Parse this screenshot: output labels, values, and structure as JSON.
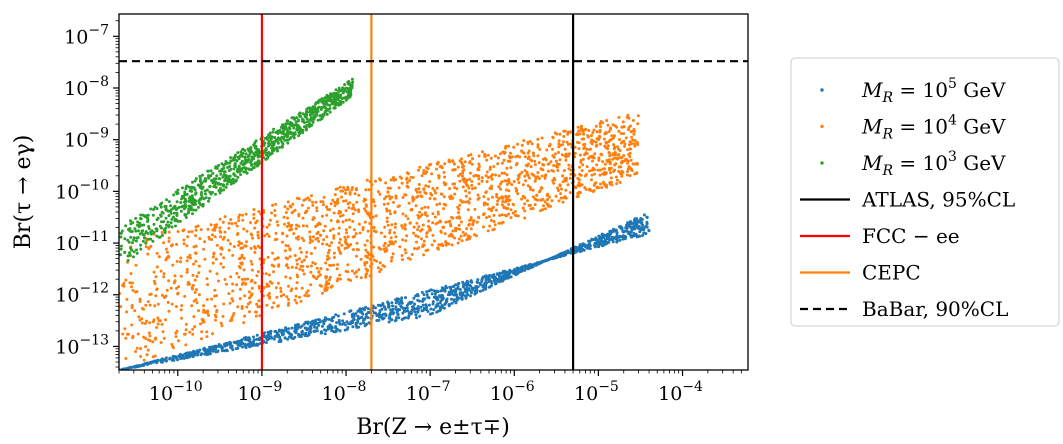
{
  "chart_data": {
    "type": "scatter",
    "xlabel": "Br(Z → e±τ∓)",
    "ylabel": "Br(τ → eγ)",
    "x_scale": "log",
    "y_scale": "log",
    "xlim": [
      2e-11,
      0.0006
    ],
    "ylim": [
      3.5e-14,
      2.7e-07
    ],
    "x_ticks": [
      {
        "value": 1e-10,
        "base": "10",
        "exp": "−10"
      },
      {
        "value": 1e-09,
        "base": "10",
        "exp": "−9"
      },
      {
        "value": 1e-08,
        "base": "10",
        "exp": "−8"
      },
      {
        "value": 1e-07,
        "base": "10",
        "exp": "−7"
      },
      {
        "value": 1e-06,
        "base": "10",
        "exp": "−6"
      },
      {
        "value": 1e-05,
        "base": "10",
        "exp": "−5"
      },
      {
        "value": 0.0001,
        "base": "10",
        "exp": "−4"
      }
    ],
    "y_ticks": [
      {
        "value": 1e-13,
        "base": "10",
        "exp": "−13"
      },
      {
        "value": 1e-12,
        "base": "10",
        "exp": "−12"
      },
      {
        "value": 1e-11,
        "base": "10",
        "exp": "−11"
      },
      {
        "value": 1e-10,
        "base": "10",
        "exp": "−10"
      },
      {
        "value": 1e-09,
        "base": "10",
        "exp": "−9"
      },
      {
        "value": 1e-08,
        "base": "10",
        "exp": "−8"
      },
      {
        "value": 1e-07,
        "base": "10",
        "exp": "−7"
      }
    ],
    "grid": false,
    "legend_position": "outside-right",
    "series": [
      {
        "name": "M_R = 10^5 GeV",
        "label_main": "M",
        "label_sub": "R",
        "label_mid": " = 10",
        "label_sup": "5",
        "label_end": " GeV",
        "kind": "scatter",
        "color": "#1f77b4",
        "band": {
          "x_range": [
            2e-11,
            4e-05
          ],
          "lower_y": [
            [
              2e-11,
              3.5e-14
            ],
            [
              4e-05,
              1.5e-11
            ]
          ],
          "upper_y": [
            [
              2e-11,
              3.5e-14
            ],
            [
              1e-07,
              4e-13
            ],
            [
              4e-05,
              4e-11
            ]
          ]
        }
      },
      {
        "name": "M_R = 10^4 GeV",
        "label_main": "M",
        "label_sub": "R",
        "label_mid": " = 10",
        "label_sup": "4",
        "label_end": " GeV",
        "kind": "scatter",
        "color": "#ff7f0e",
        "band": {
          "x_range": [
            2e-11,
            3e-05
          ],
          "lower_y": [
            [
              2e-11,
              3.5e-14
            ],
            [
              3e-05,
              2e-10
            ]
          ],
          "upper_y": [
            [
              2e-11,
              1e-11
            ],
            [
              3e-05,
              3.5e-09
            ]
          ]
        }
      },
      {
        "name": "M_R = 10^3 GeV",
        "label_main": "M",
        "label_sub": "R",
        "label_mid": " = 10",
        "label_sup": "3",
        "label_end": " GeV",
        "kind": "scatter",
        "color": "#2ca02c",
        "band": {
          "x_range": [
            2e-11,
            1.2e-08
          ],
          "lower_y": [
            [
              2e-11,
              3.3e-12
            ],
            [
              1.2e-08,
              7e-09
            ]
          ],
          "upper_y": [
            [
              2e-11,
              2e-11
            ],
            [
              1.2e-08,
              1.5e-08
            ]
          ]
        }
      },
      {
        "name": "ATLAS, 95%CL",
        "label_text": "ATLAS, 95%CL",
        "kind": "vline",
        "color": "#000000",
        "x": 5e-06,
        "dash": "solid"
      },
      {
        "name": "FCC − ee",
        "label_text": "FCC − ee",
        "kind": "vline",
        "color": "#ff0000",
        "x": 1e-09,
        "dash": "solid"
      },
      {
        "name": "CEPC",
        "label_text": "CEPC",
        "kind": "vline",
        "color": "#ff7f0e",
        "x": 2e-08,
        "dash": "solid"
      },
      {
        "name": "BaBar, 90%CL",
        "label_text": "BaBar, 90%CL",
        "kind": "hline",
        "color": "#000000",
        "y": 3.3e-08,
        "dash": "dashed"
      }
    ]
  }
}
